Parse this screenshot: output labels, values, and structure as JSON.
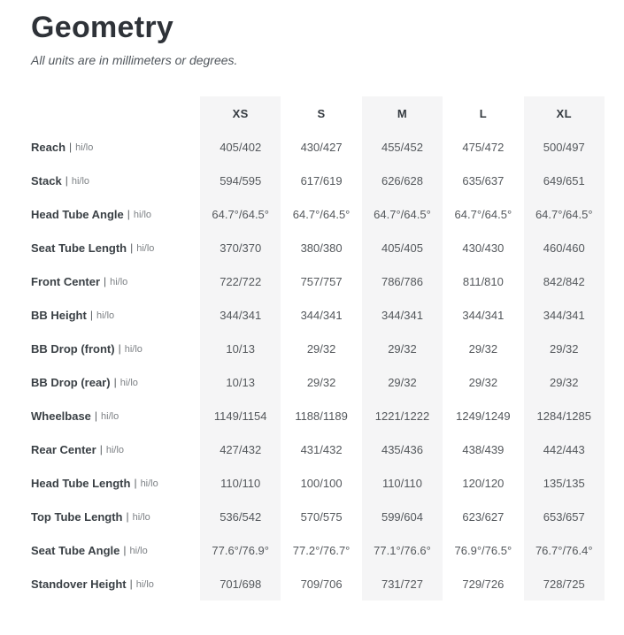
{
  "chart_data": {
    "type": "table",
    "title": "Geometry",
    "subtitle": "All units are in millimeters or degrees.",
    "columns": [
      "XS",
      "S",
      "M",
      "L",
      "XL"
    ],
    "label_separator": "|",
    "label_suffix": "hi/lo",
    "rows": [
      {
        "label": "Reach",
        "values": [
          "405/402",
          "430/427",
          "455/452",
          "475/472",
          "500/497"
        ]
      },
      {
        "label": "Stack",
        "values": [
          "594/595",
          "617/619",
          "626/628",
          "635/637",
          "649/651"
        ]
      },
      {
        "label": "Head Tube Angle",
        "values": [
          "64.7°/64.5°",
          "64.7°/64.5°",
          "64.7°/64.5°",
          "64.7°/64.5°",
          "64.7°/64.5°"
        ]
      },
      {
        "label": "Seat Tube Length",
        "values": [
          "370/370",
          "380/380",
          "405/405",
          "430/430",
          "460/460"
        ]
      },
      {
        "label": "Front Center",
        "values": [
          "722/722",
          "757/757",
          "786/786",
          "811/810",
          "842/842"
        ]
      },
      {
        "label": "BB Height",
        "values": [
          "344/341",
          "344/341",
          "344/341",
          "344/341",
          "344/341"
        ]
      },
      {
        "label": "BB Drop (front)",
        "values": [
          "10/13",
          "29/32",
          "29/32",
          "29/32",
          "29/32"
        ]
      },
      {
        "label": "BB Drop (rear)",
        "values": [
          "10/13",
          "29/32",
          "29/32",
          "29/32",
          "29/32"
        ]
      },
      {
        "label": "Wheelbase",
        "values": [
          "1149/1154",
          "1188/1189",
          "1221/1222",
          "1249/1249",
          "1284/1285"
        ]
      },
      {
        "label": "Rear Center",
        "values": [
          "427/432",
          "431/432",
          "435/436",
          "438/439",
          "442/443"
        ]
      },
      {
        "label": "Head Tube Length",
        "values": [
          "110/110",
          "100/100",
          "110/110",
          "120/120",
          "135/135"
        ]
      },
      {
        "label": "Top Tube Length",
        "values": [
          "536/542",
          "570/575",
          "599/604",
          "623/627",
          "653/657"
        ]
      },
      {
        "label": "Seat Tube Angle",
        "values": [
          "77.6°/76.9°",
          "77.2°/76.7°",
          "77.1°/76.6°",
          "76.9°/76.5°",
          "76.7°/76.4°"
        ]
      },
      {
        "label": "Standover Height",
        "values": [
          "701/698",
          "709/706",
          "731/727",
          "729/726",
          "728/725"
        ]
      }
    ],
    "layout": {
      "shaded_columns": [
        "XS",
        "M",
        "XL"
      ],
      "grid": "off",
      "value_alignment": "center"
    }
  },
  "colors": {
    "background": "#ffffff",
    "column_stripe": "#f5f5f6",
    "title_text": "#2e3238",
    "subtitle_text": "#50565c",
    "header_text": "#343a40",
    "label_text": "#3a4045",
    "suffix_text": "#7d8185",
    "value_text": "#54585c"
  }
}
